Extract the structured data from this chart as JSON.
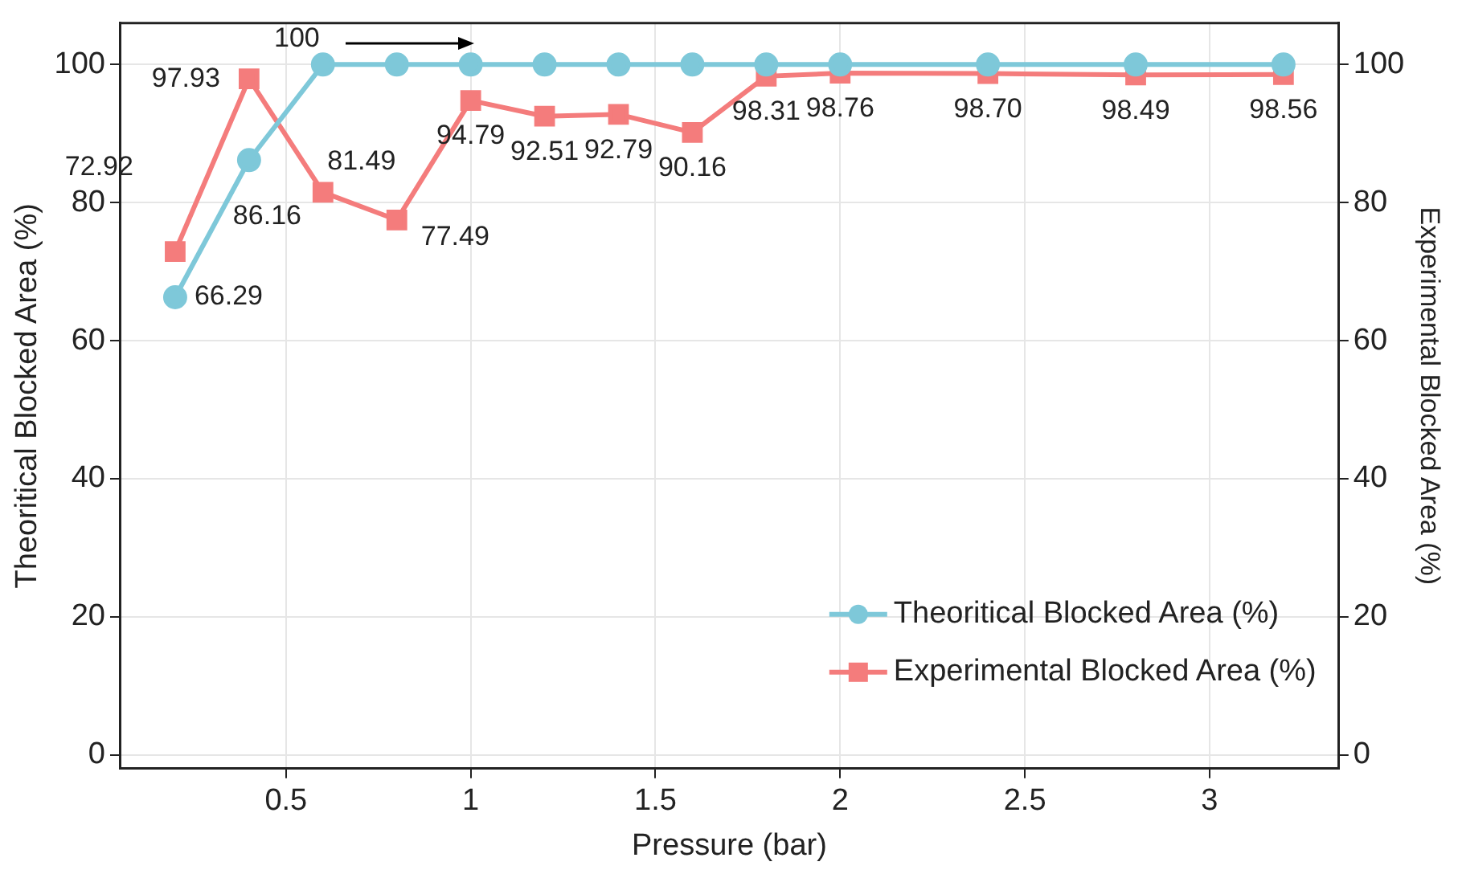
{
  "chart_data": {
    "type": "line",
    "xlabel": "Pressure (bar)",
    "ylabel": "Theoritical Blocked Area (%)",
    "y2label": "Experimental Blocked Area (%)",
    "xlim": [
      0.05,
      3.35
    ],
    "xticks": [
      0.5,
      1,
      1.5,
      2,
      2.5,
      3
    ],
    "ylim": [
      -2,
      106
    ],
    "yticks": [
      0,
      20,
      40,
      60,
      80,
      100
    ],
    "y2lim": [
      -2,
      106
    ],
    "y2ticks": [
      0,
      20,
      40,
      60,
      80,
      100
    ],
    "grid": true,
    "legend": "bottom right",
    "series": [
      {
        "name": "Theoritical Blocked Area (%)",
        "color": "#7ec8d9",
        "marker": "circle",
        "x": [
          0.2,
          0.4,
          0.6,
          0.8,
          1.0,
          1.2,
          1.4,
          1.6,
          1.8,
          2.0,
          2.4,
          2.8,
          3.2
        ],
        "values": [
          66.29,
          86.16,
          100,
          100,
          100,
          100,
          100,
          100,
          100,
          100,
          100,
          100,
          100
        ],
        "value_labels": [
          "66.29",
          "86.16",
          "100",
          null,
          null,
          null,
          null,
          null,
          null,
          null,
          null,
          null,
          null
        ]
      },
      {
        "name": "Experimental Blocked Area (%)",
        "color": "#f47c7c",
        "marker": "square",
        "axis": "y2",
        "x": [
          0.2,
          0.4,
          0.6,
          0.8,
          1.0,
          1.2,
          1.4,
          1.6,
          1.8,
          2.0,
          2.4,
          2.8,
          3.2
        ],
        "values": [
          72.92,
          97.93,
          81.49,
          77.49,
          94.79,
          92.51,
          92.79,
          90.16,
          98.31,
          98.76,
          98.7,
          98.49,
          98.56
        ],
        "value_labels": [
          "72.92",
          "97.93",
          "81.49",
          "77.49",
          "94.79",
          "92.51",
          "92.79",
          "90.16",
          "98.31",
          "98.76",
          "98.70",
          "98.49",
          "98.56"
        ]
      }
    ]
  }
}
